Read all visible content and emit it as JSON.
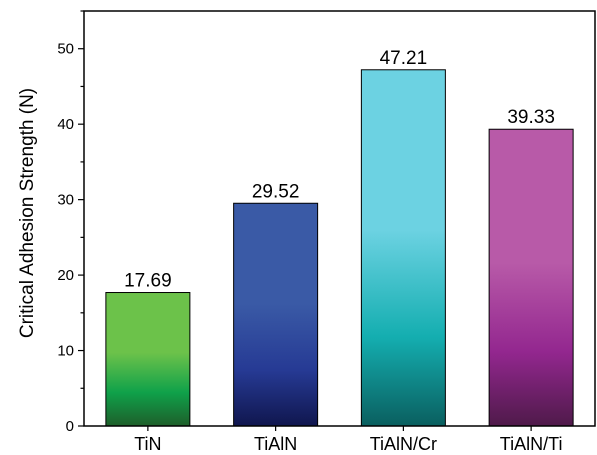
{
  "chart_data": {
    "type": "bar",
    "categories": [
      "TiN",
      "TiAlN",
      "TiAlN/Cr",
      "TiAlN/Ti"
    ],
    "values": [
      17.69,
      29.52,
      47.21,
      39.33
    ],
    "value_labels": [
      "17.69",
      "29.52",
      "47.21",
      "39.33"
    ],
    "title": "",
    "xlabel": "",
    "ylabel": "Critical Adhesion Strength (N)",
    "ylim": [
      0,
      55
    ],
    "yticks": [
      0,
      10,
      20,
      30,
      40,
      50
    ],
    "ytick_labels": [
      "0",
      "10",
      "20",
      "30",
      "40",
      "50"
    ],
    "grid": false,
    "bar_gradients": [
      {
        "top": "#6cc24a",
        "middle": "#0fa14a",
        "bottom": "#1e5e2a"
      },
      {
        "top": "#3a5aa6",
        "middle": "#263a94",
        "bottom": "#10164e"
      },
      {
        "top": "#6cd2e2",
        "middle": "#14aeb0",
        "bottom": "#0a5f5f"
      },
      {
        "top": "#b85aa8",
        "middle": "#93278f",
        "bottom": "#4f1a4a"
      }
    ]
  }
}
